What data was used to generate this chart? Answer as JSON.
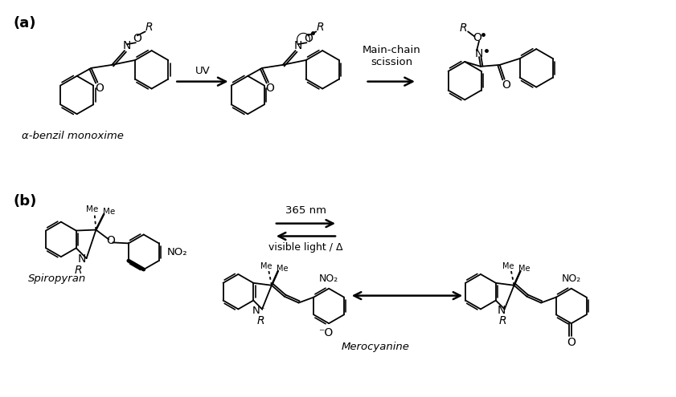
{
  "background_color": "#ffffff",
  "label_a": "(a)",
  "label_b": "(b)",
  "text_uv": "UV",
  "text_mainchain": "Main-chain\nscission",
  "text_365nm": "365 nm",
  "text_vislight": "visible light / Δ",
  "text_abenzil": "α-benzil monoxime",
  "text_spiropyran": "Spiropyran",
  "text_merocyanine": "Merocyanine",
  "figsize": [
    8.41,
    4.95
  ],
  "dpi": 100
}
